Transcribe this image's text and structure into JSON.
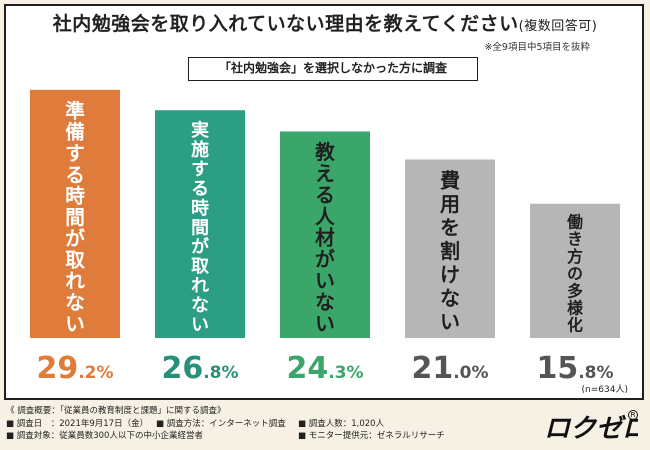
{
  "title": "社内勉強会を取り入れていない理由を教えてください",
  "title_suffix": "(複数回答可)",
  "note": "※全9項目中5項目を抜粋",
  "survey_scope": {
    "prefix": "「社内勉強会」を選択しなかった方に調査"
  },
  "sample_size": "(n=634人)",
  "colors": {
    "orange": "#e07c3b",
    "teal": "#2c9e84",
    "green": "#3aa66a",
    "gray": "#b6b6b6",
    "value_orange": "#e07c3b",
    "value_teal": "#2a8f78",
    "value_green": "#3aa66a",
    "value_gray": "#555555"
  },
  "chart_data": {
    "type": "bar",
    "categories": [
      "準備する時間が取れない",
      "実施する時間が取れない",
      "教える人材がいない",
      "費用を割けない",
      "働き方の多様化"
    ],
    "values": [
      29.2,
      26.8,
      24.3,
      21.0,
      15.8
    ],
    "value_labels": [
      "29.2%",
      "26.8%",
      "24.3%",
      "21.0%",
      "15.8%"
    ],
    "bar_colors": [
      "#e07c3b",
      "#2c9e84",
      "#3aa66a",
      "#b6b6b6",
      "#b6b6b6"
    ],
    "value_colors": [
      "#e07c3b",
      "#2a8f78",
      "#3aa66a",
      "#555555",
      "#555555"
    ],
    "label_colors": [
      "#ffffff",
      "#ffffff",
      "#1f1f1f",
      "#1f1f1f",
      "#1f1f1f"
    ],
    "ylim": [
      0,
      30
    ]
  },
  "footer": {
    "heading": "《 調査概要：「従業員の教育制度と課題」に関する調査》",
    "date": "■ 調査日　：2021年9月17日（金）",
    "method": "■ 調査方法：インターネット調査",
    "count": "■ 調査人数：1,020人",
    "target": "■ 調査対象：従業員数300人以下の中小企業経営者",
    "provider": "■ モニター提供元：ゼネラルリサーチ"
  },
  "logo": {
    "text": "ロクゼロ",
    "mark": "R"
  }
}
